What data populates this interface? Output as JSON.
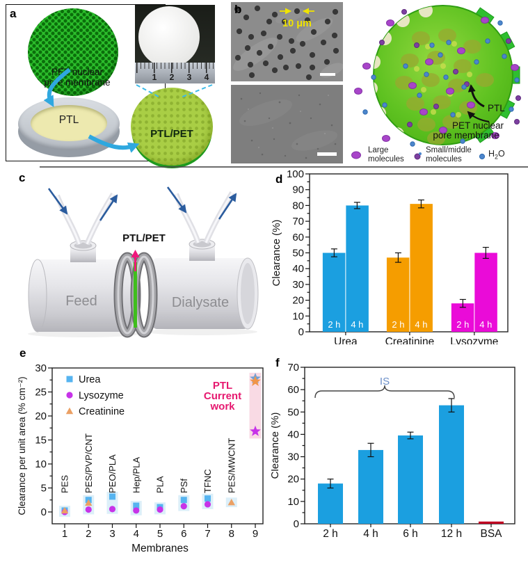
{
  "panel_a": {
    "label": "a",
    "mesh_caption_line1": "PET nuclear",
    "mesh_caption_line2": "pore membrane",
    "dish_label": "PTL",
    "disc_label": "PTL/PET",
    "ruler_numbers": [
      "1",
      "2",
      "3",
      "4"
    ]
  },
  "panel_b": {
    "label": "b",
    "pore_annotation": "10 μm",
    "ptl_label": "PTL",
    "pet_label_line1": "PET nuclear",
    "pet_label_line2": "pore membrane",
    "legend": {
      "large": {
        "line1": "Large",
        "line2": "molecules"
      },
      "small": {
        "line1": "Small/middle",
        "line2": "molecules"
      },
      "water": {
        "pre": "H",
        "sub": "2",
        "post": "O"
      }
    }
  },
  "panel_c": {
    "label": "c",
    "membrane_label": "PTL/PET",
    "feed_label": "Feed",
    "dialysate_label": "Dialysate"
  },
  "chart_data": [
    {
      "panel_label": "d",
      "type": "bar",
      "ylabel": "Clearance (%)",
      "ylim": [
        0,
        100
      ],
      "ytick_step": 10,
      "yminor_step": 5,
      "categories": [
        "Urea",
        "Creatinine",
        "Lysozyme"
      ],
      "bar_colors": [
        "#1B9FE0",
        "#F59D00",
        "#EA0BD8"
      ],
      "series": [
        {
          "name": "2 h",
          "values": [
            50,
            47,
            18
          ],
          "errors": [
            2.5,
            3,
            2.5
          ]
        },
        {
          "name": "4 h",
          "values": [
            80,
            81,
            50
          ],
          "errors": [
            2,
            2.5,
            3.5
          ]
        }
      ]
    },
    {
      "panel_label": "e",
      "type": "scatter",
      "xlabel": "Membranes",
      "ylabel": "Clearance per unit area (% cm⁻²)",
      "ylim": [
        -2.5,
        30
      ],
      "yticks": [
        0,
        5,
        10,
        15,
        20,
        25,
        30
      ],
      "x": [
        1,
        2,
        3,
        4,
        5,
        6,
        7,
        8,
        9
      ],
      "membrane_labels": [
        "PES",
        "PES/PVP/CNT",
        "PEO/PLA",
        "Hep/PLA",
        "PLA",
        "PSf",
        "TFNC",
        "PES/MWCNT"
      ],
      "series": [
        {
          "name": "Urea",
          "marker": "square",
          "color": "#56B4F0",
          "star_color": "#6FA0D6",
          "values": [
            0.3,
            2.5,
            3.2,
            1.3,
            1.0,
            2.5,
            2.8,
            null,
            27.8
          ]
        },
        {
          "name": "Lysozyme",
          "marker": "circle",
          "color": "#C733E8",
          "star_color": "#C733E8",
          "values": [
            0.0,
            0.5,
            0.6,
            0.3,
            0.5,
            1.2,
            1.6,
            null,
            16.8
          ]
        },
        {
          "name": "Creatinine",
          "marker": "triangle",
          "color": "#EBA064",
          "star_color": "#F0954A",
          "values": [
            0.3,
            1.9,
            null,
            null,
            null,
            null,
            null,
            2.0,
            27.2
          ]
        }
      ],
      "highlight_annotation": [
        "PTL",
        "Current",
        "work"
      ],
      "annotation_color": "#E6186F",
      "column_band_color": "#D8EDF8",
      "highlight_band_color": "#F9D8E3"
    },
    {
      "panel_label": "f",
      "type": "bar",
      "ylabel": "Clearance (%)",
      "ylim": [
        0,
        70
      ],
      "ytick_step": 10,
      "yminor_step": 5,
      "categories": [
        "2 h",
        "4 h",
        "6 h",
        "12 h",
        "BSA"
      ],
      "values": [
        18,
        33,
        39.5,
        53,
        1
      ],
      "errors": [
        2,
        3,
        1.5,
        3,
        0
      ],
      "colors": [
        "#1B9FE0",
        "#1B9FE0",
        "#1B9FE0",
        "#1B9FE0",
        "#C00021"
      ],
      "annotation": "IS",
      "annotation_color": "#6B8FC9"
    }
  ]
}
